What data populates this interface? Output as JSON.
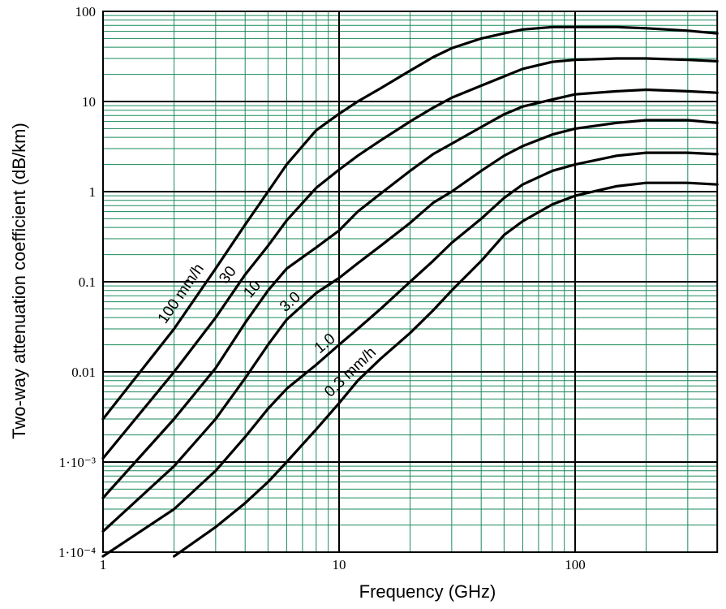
{
  "chart_data": {
    "type": "line",
    "xlabel": "Frequency (GHz)",
    "ylabel": "Two-way attenuation coefficient (dB/km)",
    "x_scale": "log",
    "y_scale": "log",
    "xlim": [
      1,
      400
    ],
    "ylim": [
      0.0001,
      100
    ],
    "x_ticks": [
      {
        "value": 1,
        "label": "1"
      },
      {
        "value": 10,
        "label": "10"
      },
      {
        "value": 100,
        "label": "100"
      }
    ],
    "y_ticks": [
      {
        "value": 100,
        "label": "100"
      },
      {
        "value": 10,
        "label": "10"
      },
      {
        "value": 1,
        "label": "1"
      },
      {
        "value": 0.1,
        "label": "0.1"
      },
      {
        "value": 0.01,
        "label": "0.01"
      },
      {
        "value": 0.001,
        "label": "1·10⁻³"
      },
      {
        "value": 0.0001,
        "label": "1·10⁻⁴"
      }
    ],
    "grid": true,
    "grid_color": "#1a8a5a",
    "line_color": "#000000",
    "series": [
      {
        "name": "100 mm/h",
        "label_text": "100 mm/h",
        "x": [
          1,
          2,
          3,
          4,
          5,
          6,
          8,
          10,
          12,
          15,
          20,
          25,
          30,
          40,
          50,
          60,
          80,
          100,
          150,
          200,
          300,
          400
        ],
        "y": [
          0.003,
          0.03,
          0.14,
          0.43,
          1.0,
          2.0,
          4.8,
          7.3,
          10,
          14,
          22,
          31,
          39,
          50,
          57,
          63,
          67,
          67,
          67,
          65,
          61,
          57
        ]
      },
      {
        "name": "30",
        "label_text": "30",
        "x": [
          1,
          2,
          3,
          4,
          5,
          6,
          8,
          10,
          12,
          15,
          20,
          25,
          30,
          40,
          50,
          60,
          80,
          100,
          150,
          200,
          300,
          400
        ],
        "y": [
          0.0011,
          0.01,
          0.04,
          0.12,
          0.25,
          0.48,
          1.1,
          1.75,
          2.5,
          3.7,
          6.0,
          8.5,
          11,
          15,
          19,
          23,
          27.5,
          29,
          30,
          30,
          29,
          28
        ]
      },
      {
        "name": "10",
        "label_text": "10",
        "x": [
          1,
          2,
          3,
          4,
          5,
          6,
          8,
          10,
          12,
          15,
          20,
          25,
          30,
          40,
          50,
          60,
          80,
          100,
          150,
          200,
          300,
          400
        ],
        "y": [
          0.0004,
          0.003,
          0.011,
          0.035,
          0.08,
          0.14,
          0.24,
          0.37,
          0.6,
          0.95,
          1.7,
          2.6,
          3.4,
          5.2,
          7.2,
          8.8,
          10.5,
          12,
          13,
          13.5,
          13,
          12.5
        ]
      },
      {
        "name": "3.0",
        "label_text": "3.0",
        "x": [
          1,
          2,
          3,
          4,
          5,
          6,
          8,
          10,
          12,
          15,
          20,
          25,
          30,
          40,
          50,
          60,
          80,
          100,
          150,
          200,
          300,
          400
        ],
        "y": [
          0.00017,
          0.0009,
          0.003,
          0.0085,
          0.02,
          0.038,
          0.075,
          0.11,
          0.16,
          0.25,
          0.45,
          0.75,
          1.0,
          1.7,
          2.5,
          3.2,
          4.3,
          5.0,
          5.8,
          6.2,
          6.2,
          5.8
        ]
      },
      {
        "name": "1.0",
        "label_text": "1.0",
        "x": [
          1,
          2,
          3,
          4,
          5,
          6,
          8,
          10,
          12,
          15,
          20,
          25,
          30,
          40,
          50,
          60,
          80,
          100,
          150,
          200,
          300,
          400
        ],
        "y": [
          9e-05,
          0.0003,
          0.0008,
          0.0019,
          0.0039,
          0.0065,
          0.012,
          0.02,
          0.03,
          0.05,
          0.1,
          0.17,
          0.27,
          0.5,
          0.85,
          1.2,
          1.7,
          2.0,
          2.5,
          2.7,
          2.7,
          2.6
        ]
      },
      {
        "name": "0.3 mm/h",
        "label_text": "0.3 mm/h",
        "x": [
          2,
          3,
          4,
          5,
          6,
          8,
          10,
          12,
          15,
          20,
          25,
          30,
          40,
          50,
          60,
          80,
          100,
          150,
          200,
          300,
          400
        ],
        "y": [
          9e-05,
          0.00019,
          0.00035,
          0.0006,
          0.001,
          0.0023,
          0.0045,
          0.008,
          0.014,
          0.027,
          0.048,
          0.08,
          0.17,
          0.33,
          0.47,
          0.72,
          0.9,
          1.15,
          1.25,
          1.25,
          1.2
        ]
      }
    ]
  }
}
